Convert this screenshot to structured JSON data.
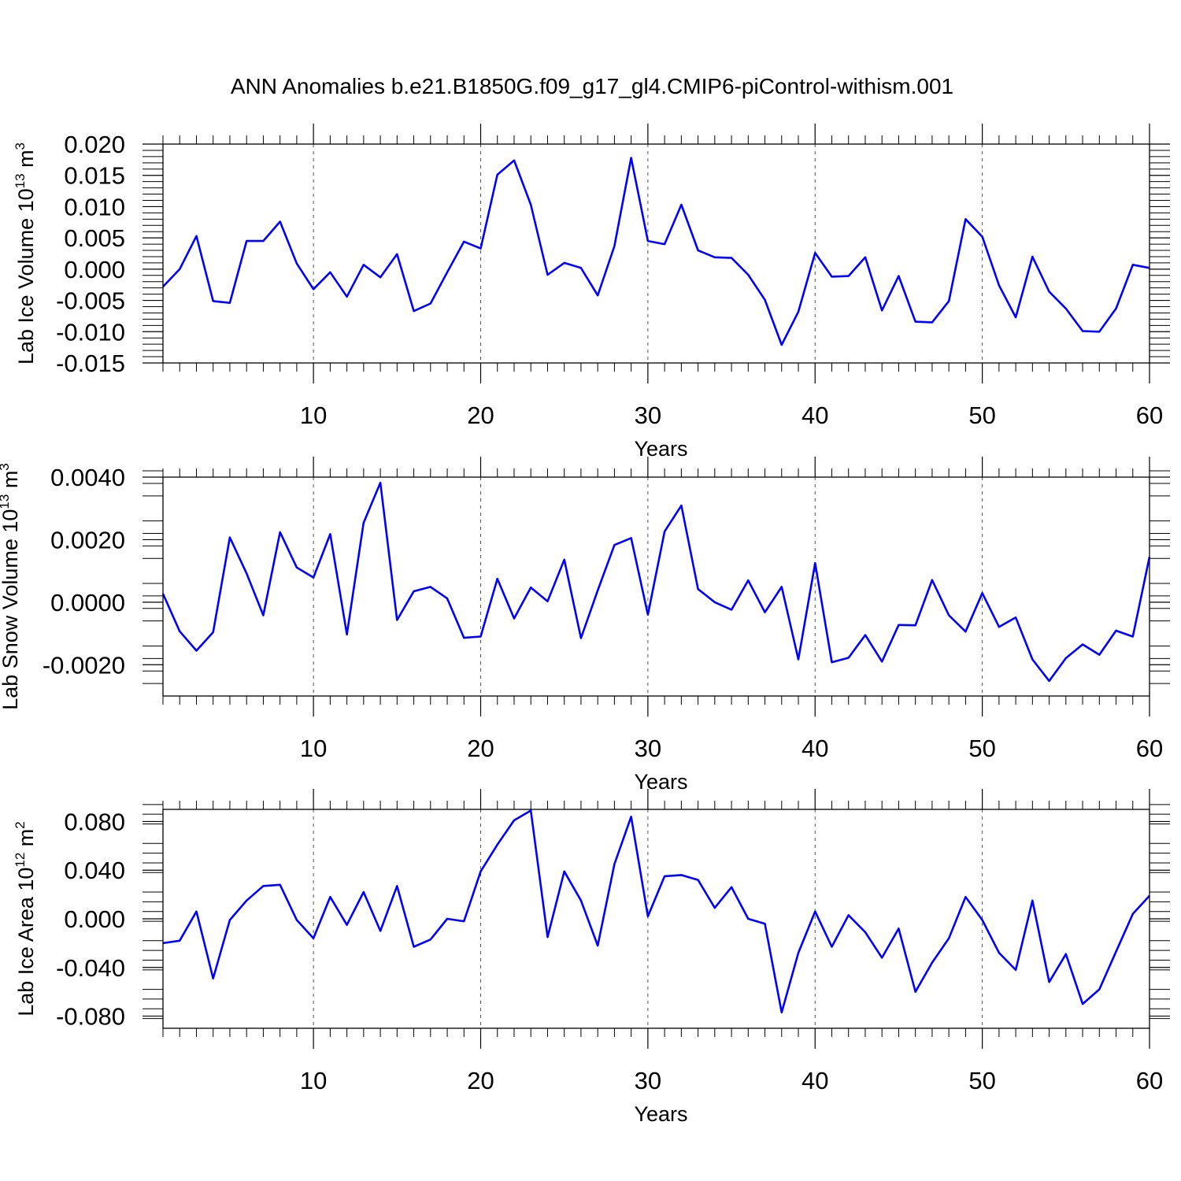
{
  "title": "ANN Anomalies b.e21.B1850G.f09_g17_gl4.CMIP6-piControl-withism.001",
  "colors": {
    "line": "#0000ff",
    "axis": "#000000",
    "grid": "#555555"
  },
  "chart_data": [
    {
      "type": "line",
      "title": "",
      "xlabel": "Years",
      "ylabel_parts": [
        "Lab Ice Volume 10",
        "13",
        " m",
        "3"
      ],
      "xlim": [
        1,
        60
      ],
      "ylim": [
        -0.015,
        0.02
      ],
      "xticks": [
        "10",
        "20",
        "30",
        "40",
        "50",
        "60"
      ],
      "yticks": [
        "0.020",
        "0.015",
        "0.010",
        "0.005",
        "0.000",
        "-0.005",
        "-0.010",
        "-0.015"
      ],
      "grid": "vertical dashed at major x ticks",
      "x": [
        1,
        2,
        3,
        4,
        5,
        6,
        7,
        8,
        9,
        10,
        11,
        12,
        13,
        14,
        15,
        16,
        17,
        18,
        19,
        20,
        21,
        22,
        23,
        24,
        25,
        26,
        27,
        28,
        29,
        30,
        31,
        32,
        33,
        34,
        35,
        36,
        37,
        38,
        39,
        40,
        41,
        42,
        43,
        44,
        45,
        46,
        47,
        48,
        49,
        50,
        51,
        52,
        53,
        54,
        55,
        56,
        57,
        58,
        59,
        60
      ],
      "series": [
        {
          "values": [
            -0.0028,
            0.0,
            0.0053,
            -0.0051,
            -0.0054,
            0.0045,
            0.0045,
            0.0076,
            0.0009,
            -0.0032,
            -0.0005,
            -0.0044,
            0.0007,
            -0.0013,
            0.0024,
            -0.0067,
            -0.0055,
            -0.0005,
            0.0044,
            0.0033,
            0.0151,
            0.0174,
            0.0103,
            -0.0009,
            0.001,
            0.0002,
            -0.0042,
            0.0037,
            0.0178,
            0.0045,
            0.004,
            0.0103,
            0.003,
            0.0019,
            0.0018,
            -0.0009,
            -0.0049,
            -0.0121,
            -0.0068,
            0.0026,
            -0.0012,
            -0.0011,
            0.0019,
            -0.0066,
            -0.0011,
            -0.0084,
            -0.0085,
            -0.0051,
            0.008,
            0.0052,
            -0.0026,
            -0.0077,
            0.002,
            -0.0036,
            -0.0063,
            -0.0099,
            -0.01,
            -0.0063,
            0.0007,
            0.0002
          ]
        }
      ]
    },
    {
      "type": "line",
      "title": "",
      "xlabel": "Years",
      "ylabel_parts": [
        "Lab Snow Volume 10",
        "13",
        " m",
        "3"
      ],
      "xlim": [
        1,
        60
      ],
      "ylim": [
        -0.003,
        0.004
      ],
      "xticks": [
        "10",
        "20",
        "30",
        "40",
        "50",
        "60"
      ],
      "yticks": [
        "0.0040",
        "0.0020",
        "0.0000",
        "-0.0020"
      ],
      "grid": "vertical dashed at major x ticks",
      "x": [
        1,
        2,
        3,
        4,
        5,
        6,
        7,
        8,
        9,
        10,
        11,
        12,
        13,
        14,
        15,
        16,
        17,
        18,
        19,
        20,
        21,
        22,
        23,
        24,
        25,
        26,
        27,
        28,
        29,
        30,
        31,
        32,
        33,
        34,
        35,
        36,
        37,
        38,
        39,
        40,
        41,
        42,
        43,
        44,
        45,
        46,
        47,
        48,
        49,
        50,
        51,
        52,
        53,
        54,
        55,
        56,
        57,
        58,
        59,
        60
      ],
      "series": [
        {
          "values": [
            0.00027,
            -0.00093,
            -0.00155,
            -0.00096,
            0.00207,
            0.00092,
            -0.00042,
            0.00224,
            0.00111,
            0.00079,
            0.00218,
            -0.00103,
            0.00254,
            0.00382,
            -0.00057,
            0.00035,
            0.00049,
            0.00012,
            -0.00114,
            -0.0011,
            0.00075,
            -0.00052,
            0.00047,
            3e-05,
            0.00136,
            -0.00115,
            0.00038,
            0.00183,
            0.00205,
            -0.0004,
            0.00226,
            0.00309,
            0.00042,
            0.0,
            -0.00024,
            0.0007,
            -0.00032,
            0.00049,
            -0.00183,
            0.00125,
            -0.00192,
            -0.00178,
            -0.00105,
            -0.0019,
            -0.00073,
            -0.00074,
            0.00071,
            -0.00042,
            -0.00094,
            0.00029,
            -0.00079,
            -0.00049,
            -0.00183,
            -0.00252,
            -0.00179,
            -0.00135,
            -0.00168,
            -0.00091,
            -0.0011,
            0.00145
          ]
        }
      ]
    },
    {
      "type": "line",
      "title": "",
      "xlabel": "Years",
      "ylabel_parts": [
        "Lab Ice Area 10",
        "12",
        " m",
        "2"
      ],
      "xlim": [
        1,
        60
      ],
      "ylim": [
        -0.09,
        0.09
      ],
      "xticks": [
        "10",
        "20",
        "30",
        "40",
        "50",
        "60"
      ],
      "yticks": [
        "0.080",
        "0.040",
        "0.000",
        "-0.040",
        "-0.080"
      ],
      "grid": "vertical dashed at major x ticks",
      "x": [
        1,
        2,
        3,
        4,
        5,
        6,
        7,
        8,
        9,
        10,
        11,
        12,
        13,
        14,
        15,
        16,
        17,
        18,
        19,
        20,
        21,
        22,
        23,
        24,
        25,
        26,
        27,
        28,
        29,
        30,
        31,
        32,
        33,
        34,
        35,
        36,
        37,
        38,
        39,
        40,
        41,
        42,
        43,
        44,
        45,
        46,
        47,
        48,
        49,
        50,
        51,
        52,
        53,
        54,
        55,
        56,
        57,
        58,
        59,
        60
      ],
      "series": [
        {
          "values": [
            -0.02,
            -0.018,
            0.006,
            -0.049,
            -0.001,
            0.015,
            0.027,
            0.028,
            -0.001,
            -0.016,
            0.018,
            -0.005,
            0.022,
            -0.01,
            0.027,
            -0.023,
            -0.017,
            0.0,
            -0.002,
            0.039,
            0.061,
            0.081,
            0.089,
            -0.015,
            0.039,
            0.015,
            -0.022,
            0.045,
            0.084,
            0.002,
            0.035,
            0.036,
            0.032,
            0.009,
            0.026,
            0.0,
            -0.004,
            -0.077,
            -0.028,
            0.006,
            -0.023,
            0.003,
            -0.011,
            -0.032,
            -0.008,
            -0.06,
            -0.036,
            -0.016,
            0.018,
            -0.001,
            -0.028,
            -0.042,
            0.015,
            -0.052,
            -0.029,
            -0.07,
            -0.058,
            -0.027,
            0.004,
            0.019
          ]
        }
      ]
    }
  ]
}
